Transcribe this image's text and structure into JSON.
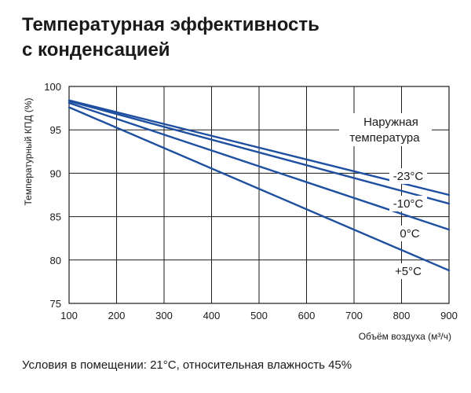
{
  "title": {
    "line1": "Температурная эффективность",
    "line2": "с конденсацией"
  },
  "footnote": "Условия в помещении: 21°C, относительная влажность 45%",
  "chart_data": {
    "type": "line",
    "xlabel": "Объём воздуха (м³/ч)",
    "ylabel": "Температурный КПД (%)",
    "xlim": [
      100,
      900
    ],
    "ylim": [
      75,
      100
    ],
    "xticks": [
      100,
      200,
      300,
      400,
      500,
      600,
      700,
      800,
      900
    ],
    "yticks": [
      75,
      80,
      85,
      90,
      95,
      100
    ],
    "grid": true,
    "legend_title": [
      "Наружная",
      "температура"
    ],
    "line_color": "#1f4fa0",
    "series": [
      {
        "name": "-23°C",
        "x": [
          100,
          900
        ],
        "y": [
          98.4,
          87.5
        ]
      },
      {
        "name": "-10°C",
        "x": [
          100,
          900
        ],
        "y": [
          98.3,
          86.5
        ]
      },
      {
        "name": "0°C",
        "x": [
          100,
          900
        ],
        "y": [
          98.1,
          83.5
        ]
      },
      {
        "name": "+5°C",
        "x": [
          100,
          900
        ],
        "y": [
          97.6,
          78.8
        ]
      }
    ]
  }
}
